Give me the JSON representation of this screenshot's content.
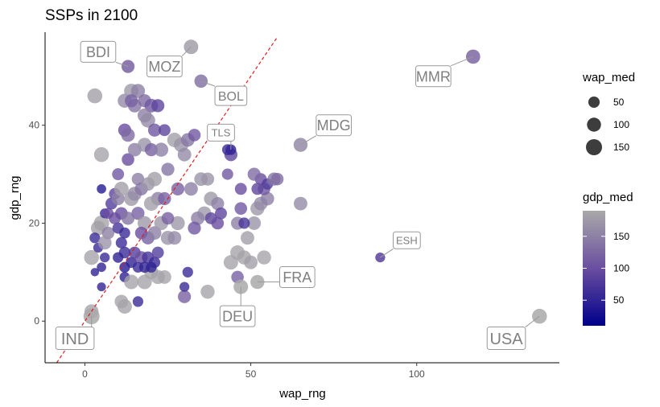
{
  "chart_data": {
    "type": "scatter",
    "title": "SSPs in 2100",
    "xlabel": "wap_rng",
    "ylabel": "gdp_rng",
    "xlim": [
      -12,
      143
    ],
    "ylim": [
      -8.5,
      59
    ],
    "x_ticks": [
      0,
      50,
      100
    ],
    "y_ticks": [
      0,
      20,
      40
    ],
    "grid": false,
    "reference_line": {
      "slope": 1,
      "intercept": 0,
      "color": "#e41a1c",
      "style": "dashed"
    },
    "size_legend": {
      "title": "wap_med",
      "values": [
        50,
        100,
        150
      ],
      "placement": "right"
    },
    "color_legend": {
      "title": "gdp_med",
      "ticks": [
        50,
        100,
        150
      ],
      "min": 10,
      "max": 190,
      "low_color": "#00008b",
      "high_color": "#a9a9a9",
      "placement": "right"
    },
    "labeled_points": [
      {
        "label": "BDI",
        "x": 13,
        "y": 52,
        "size": 80,
        "color": 120,
        "label_x": 4,
        "label_y": 55,
        "font": 18
      },
      {
        "label": "MOZ",
        "x": 32,
        "y": 56,
        "size": 110,
        "color": 180,
        "label_x": 24,
        "label_y": 52,
        "font": 18
      },
      {
        "label": "BOL",
        "x": 35,
        "y": 49,
        "size": 85,
        "color": 140,
        "label_x": 44,
        "label_y": 46,
        "font": 16
      },
      {
        "label": "MMR",
        "x": 117,
        "y": 54,
        "size": 105,
        "color": 125,
        "label_x": 105,
        "label_y": 50,
        "font": 18
      },
      {
        "label": "MDG",
        "x": 65,
        "y": 36,
        "size": 100,
        "color": 160,
        "label_x": 75,
        "label_y": 40,
        "font": 18
      },
      {
        "label": "TLS",
        "x": 44,
        "y": 35,
        "size": 40,
        "color": 55,
        "label_x": 41,
        "label_y": 38.5,
        "font": 13
      },
      {
        "label": "ESH",
        "x": 89,
        "y": 13,
        "size": 30,
        "color": 85,
        "label_x": 97,
        "label_y": 16.5,
        "font": 13
      },
      {
        "label": "FRA",
        "x": 52,
        "y": 8,
        "size": 100,
        "color": 190,
        "label_x": 64,
        "label_y": 9,
        "font": 18
      },
      {
        "label": "DEU",
        "x": 47,
        "y": 7,
        "size": 110,
        "color": 190,
        "label_x": 46,
        "label_y": 1,
        "font": 18
      },
      {
        "label": "IND",
        "x": 2,
        "y": 1,
        "size": 150,
        "color": 190,
        "label_x": -3,
        "label_y": -3.5,
        "font": 20
      },
      {
        "label": "USA",
        "x": 137,
        "y": 1,
        "size": 120,
        "color": 190,
        "label_x": 127,
        "label_y": -3.5,
        "font": 20
      }
    ],
    "points": [
      {
        "x": 3,
        "y": 46,
        "size": 120,
        "color": 180
      },
      {
        "x": 5,
        "y": 34,
        "size": 120,
        "color": 185
      },
      {
        "x": 5,
        "y": 20,
        "size": 130,
        "color": 185
      },
      {
        "x": 4,
        "y": 19,
        "size": 110,
        "color": 180
      },
      {
        "x": 2,
        "y": 13,
        "size": 120,
        "color": 185
      },
      {
        "x": 2,
        "y": 2,
        "size": 100,
        "color": 185
      },
      {
        "x": 3,
        "y": 17,
        "size": 40,
        "color": 60
      },
      {
        "x": 5,
        "y": 27,
        "size": 25,
        "color": 40
      },
      {
        "x": 6,
        "y": 22,
        "size": 30,
        "color": 60
      },
      {
        "x": 4,
        "y": 15,
        "size": 30,
        "color": 60
      },
      {
        "x": 6,
        "y": 13,
        "size": 30,
        "color": 60
      },
      {
        "x": 5,
        "y": 11,
        "size": 25,
        "color": 50
      },
      {
        "x": 5,
        "y": 7,
        "size": 20,
        "color": 50
      },
      {
        "x": 3,
        "y": 10,
        "size": 15,
        "color": 50
      },
      {
        "x": 7,
        "y": 22,
        "size": 45,
        "color": 100
      },
      {
        "x": 7,
        "y": 18,
        "size": 70,
        "color": 150
      },
      {
        "x": 6,
        "y": 16,
        "size": 90,
        "color": 170
      },
      {
        "x": 8,
        "y": 24,
        "size": 60,
        "color": 80
      },
      {
        "x": 9,
        "y": 26,
        "size": 55,
        "color": 90
      },
      {
        "x": 10,
        "y": 30,
        "size": 60,
        "color": 110
      },
      {
        "x": 10,
        "y": 25,
        "size": 80,
        "color": 150
      },
      {
        "x": 11,
        "y": 27,
        "size": 110,
        "color": 180
      },
      {
        "x": 11,
        "y": 22,
        "size": 70,
        "color": 100
      },
      {
        "x": 10,
        "y": 19,
        "size": 50,
        "color": 70
      },
      {
        "x": 12,
        "y": 18,
        "size": 45,
        "color": 60
      },
      {
        "x": 11,
        "y": 16,
        "size": 50,
        "color": 60
      },
      {
        "x": 12,
        "y": 14,
        "size": 55,
        "color": 60
      },
      {
        "x": 10,
        "y": 13,
        "size": 40,
        "color": 50
      },
      {
        "x": 12,
        "y": 11,
        "size": 40,
        "color": 40
      },
      {
        "x": 14,
        "y": 12,
        "size": 45,
        "color": 50
      },
      {
        "x": 12,
        "y": 9,
        "size": 35,
        "color": 50
      },
      {
        "x": 12,
        "y": 3,
        "size": 110,
        "color": 185
      },
      {
        "x": 11,
        "y": 4,
        "size": 90,
        "color": 185
      },
      {
        "x": 14,
        "y": 8,
        "size": 110,
        "color": 185
      },
      {
        "x": 16,
        "y": 4,
        "size": 40,
        "color": 60
      },
      {
        "x": 18,
        "y": 8,
        "size": 110,
        "color": 185
      },
      {
        "x": 20,
        "y": 10,
        "size": 100,
        "color": 185
      },
      {
        "x": 22,
        "y": 9,
        "size": 100,
        "color": 185
      },
      {
        "x": 12,
        "y": 39,
        "size": 80,
        "color": 100
      },
      {
        "x": 13,
        "y": 38,
        "size": 90,
        "color": 130
      },
      {
        "x": 12,
        "y": 45,
        "size": 100,
        "color": 160
      },
      {
        "x": 14,
        "y": 47,
        "size": 110,
        "color": 175
      },
      {
        "x": 16,
        "y": 47,
        "size": 100,
        "color": 150
      },
      {
        "x": 15,
        "y": 44,
        "size": 90,
        "color": 140
      },
      {
        "x": 14,
        "y": 45,
        "size": 80,
        "color": 120
      },
      {
        "x": 18,
        "y": 45,
        "size": 80,
        "color": 130
      },
      {
        "x": 20,
        "y": 44,
        "size": 90,
        "color": 110
      },
      {
        "x": 22,
        "y": 44,
        "size": 80,
        "color": 90
      },
      {
        "x": 18,
        "y": 42,
        "size": 100,
        "color": 150
      },
      {
        "x": 19,
        "y": 41,
        "size": 110,
        "color": 160
      },
      {
        "x": 21,
        "y": 39,
        "size": 80,
        "color": 110
      },
      {
        "x": 24,
        "y": 39,
        "size": 60,
        "color": 90
      },
      {
        "x": 13,
        "y": 33,
        "size": 70,
        "color": 100
      },
      {
        "x": 15,
        "y": 35,
        "size": 90,
        "color": 150
      },
      {
        "x": 18,
        "y": 36,
        "size": 100,
        "color": 170
      },
      {
        "x": 20,
        "y": 35,
        "size": 80,
        "color": 120
      },
      {
        "x": 23,
        "y": 35,
        "size": 100,
        "color": 150
      },
      {
        "x": 27,
        "y": 37,
        "size": 110,
        "color": 180
      },
      {
        "x": 29,
        "y": 36,
        "size": 110,
        "color": 170
      },
      {
        "x": 31,
        "y": 37,
        "size": 90,
        "color": 140
      },
      {
        "x": 33,
        "y": 38,
        "size": 70,
        "color": 110
      },
      {
        "x": 30,
        "y": 34,
        "size": 90,
        "color": 160
      },
      {
        "x": 14,
        "y": 25,
        "size": 110,
        "color": 175
      },
      {
        "x": 15,
        "y": 26,
        "size": 100,
        "color": 160
      },
      {
        "x": 16,
        "y": 29,
        "size": 70,
        "color": 150
      },
      {
        "x": 17,
        "y": 27,
        "size": 80,
        "color": 140
      },
      {
        "x": 19,
        "y": 28,
        "size": 90,
        "color": 170
      },
      {
        "x": 21,
        "y": 29,
        "size": 110,
        "color": 180
      },
      {
        "x": 22,
        "y": 25,
        "size": 90,
        "color": 150
      },
      {
        "x": 20,
        "y": 24,
        "size": 110,
        "color": 180
      },
      {
        "x": 24,
        "y": 25,
        "size": 80,
        "color": 120
      },
      {
        "x": 25,
        "y": 31,
        "size": 80,
        "color": 140
      },
      {
        "x": 28,
        "y": 27,
        "size": 80,
        "color": 120
      },
      {
        "x": 32,
        "y": 27,
        "size": 90,
        "color": 150
      },
      {
        "x": 35,
        "y": 29,
        "size": 90,
        "color": 170
      },
      {
        "x": 38,
        "y": 25,
        "size": 100,
        "color": 175
      },
      {
        "x": 40,
        "y": 24,
        "size": 80,
        "color": 150
      },
      {
        "x": 41,
        "y": 22,
        "size": 60,
        "color": 90
      },
      {
        "x": 43,
        "y": 30,
        "size": 50,
        "color": 110
      },
      {
        "x": 36,
        "y": 22,
        "size": 100,
        "color": 175
      },
      {
        "x": 34,
        "y": 21,
        "size": 90,
        "color": 150
      },
      {
        "x": 33,
        "y": 19,
        "size": 80,
        "color": 110
      },
      {
        "x": 38,
        "y": 21,
        "size": 60,
        "color": 90
      },
      {
        "x": 40,
        "y": 20,
        "size": 70,
        "color": 100
      },
      {
        "x": 16,
        "y": 22,
        "size": 80,
        "color": 120
      },
      {
        "x": 18,
        "y": 20,
        "size": 100,
        "color": 175
      },
      {
        "x": 17,
        "y": 18,
        "size": 70,
        "color": 100
      },
      {
        "x": 19,
        "y": 17,
        "size": 80,
        "color": 120
      },
      {
        "x": 21,
        "y": 18,
        "size": 90,
        "color": 150
      },
      {
        "x": 23,
        "y": 20,
        "size": 100,
        "color": 175
      },
      {
        "x": 25,
        "y": 17,
        "size": 100,
        "color": 170
      },
      {
        "x": 27,
        "y": 17,
        "size": 90,
        "color": 160
      },
      {
        "x": 15,
        "y": 14,
        "size": 60,
        "color": 80
      },
      {
        "x": 17,
        "y": 13,
        "size": 70,
        "color": 100
      },
      {
        "x": 19,
        "y": 13,
        "size": 60,
        "color": 70
      },
      {
        "x": 21,
        "y": 12,
        "size": 50,
        "color": 60
      },
      {
        "x": 22,
        "y": 14,
        "size": 60,
        "color": 80
      },
      {
        "x": 16,
        "y": 11,
        "size": 40,
        "color": 60
      },
      {
        "x": 18,
        "y": 11,
        "size": 45,
        "color": 50
      },
      {
        "x": 20,
        "y": 11,
        "size": 40,
        "color": 50
      },
      {
        "x": 24,
        "y": 9,
        "size": 90,
        "color": 185
      },
      {
        "x": 30,
        "y": 5,
        "size": 80,
        "color": 120
      },
      {
        "x": 31,
        "y": 10,
        "size": 40,
        "color": 60
      },
      {
        "x": 30,
        "y": 7,
        "size": 30,
        "color": 60
      },
      {
        "x": 37,
        "y": 6,
        "size": 100,
        "color": 185
      },
      {
        "x": 44,
        "y": 12,
        "size": 110,
        "color": 185
      },
      {
        "x": 46,
        "y": 14,
        "size": 110,
        "color": 185
      },
      {
        "x": 48,
        "y": 13,
        "size": 100,
        "color": 185
      },
      {
        "x": 50,
        "y": 12,
        "size": 90,
        "color": 180
      },
      {
        "x": 49,
        "y": 17,
        "size": 90,
        "color": 180
      },
      {
        "x": 46,
        "y": 9,
        "size": 70,
        "color": 120
      },
      {
        "x": 54,
        "y": 13,
        "size": 100,
        "color": 185
      },
      {
        "x": 46,
        "y": 20,
        "size": 80,
        "color": 150
      },
      {
        "x": 51,
        "y": 20,
        "size": 90,
        "color": 170
      },
      {
        "x": 52,
        "y": 23,
        "size": 100,
        "color": 175
      },
      {
        "x": 53,
        "y": 24,
        "size": 90,
        "color": 160
      },
      {
        "x": 55,
        "y": 25,
        "size": 90,
        "color": 150
      },
      {
        "x": 54,
        "y": 27,
        "size": 70,
        "color": 110
      },
      {
        "x": 52,
        "y": 27,
        "size": 60,
        "color": 90
      },
      {
        "x": 53,
        "y": 29,
        "size": 60,
        "color": 100
      },
      {
        "x": 55,
        "y": 28,
        "size": 50,
        "color": 80
      },
      {
        "x": 57,
        "y": 29,
        "size": 80,
        "color": 140
      },
      {
        "x": 58,
        "y": 29,
        "size": 70,
        "color": 130
      },
      {
        "x": 47,
        "y": 27,
        "size": 60,
        "color": 100
      },
      {
        "x": 51,
        "y": 30,
        "size": 80,
        "color": 130
      },
      {
        "x": 47,
        "y": 23,
        "size": 70,
        "color": 110
      },
      {
        "x": 65,
        "y": 24,
        "size": 90,
        "color": 160
      },
      {
        "x": 48,
        "y": 20,
        "size": 50,
        "color": 70
      },
      {
        "x": 44,
        "y": 34,
        "size": 80,
        "color": 90
      },
      {
        "x": 43,
        "y": 35,
        "size": 45,
        "color": 60
      },
      {
        "x": 37,
        "y": 29,
        "size": 80,
        "color": 170
      },
      {
        "x": 28,
        "y": 20,
        "size": 100,
        "color": 175
      },
      {
        "x": 25,
        "y": 21,
        "size": 70,
        "color": 120
      },
      {
        "x": 13,
        "y": 21,
        "size": 80,
        "color": 140
      },
      {
        "x": 9,
        "y": 21,
        "size": 60,
        "color": 100
      }
    ]
  }
}
